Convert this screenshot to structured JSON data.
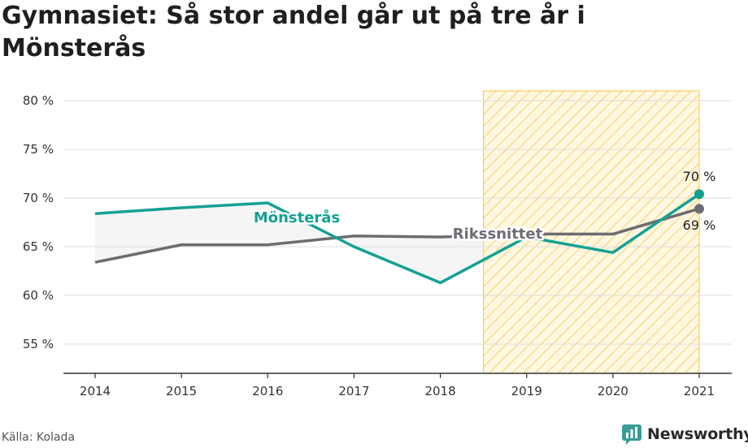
{
  "title": "Gymnasiet: Så stor andel går ut på tre år i Mönsterås",
  "source": "Källa: Kolada",
  "brand": "Newsworthy",
  "colors": {
    "monsteras": "#13a193",
    "riket": "#6e6c72",
    "highlight_fill": "#fbe7a8",
    "highlight_stroke": "#f5c542",
    "brand_icon": "#3a9c94",
    "grid": "#dddddd",
    "axis": "#333333",
    "area": "#e9e9ec"
  },
  "chart_data": {
    "type": "line",
    "x": [
      "2014",
      "2015",
      "2016",
      "2017",
      "2018",
      "2019",
      "2020",
      "2021"
    ],
    "series": [
      {
        "name": "Mönsterås",
        "values": [
          68.4,
          69.0,
          69.5,
          65.0,
          61.3,
          66.0,
          64.4,
          70.4
        ]
      },
      {
        "name": "Rikssnittet",
        "values": [
          63.4,
          65.2,
          65.2,
          66.1,
          66.0,
          66.3,
          66.3,
          68.9
        ]
      }
    ],
    "yticks": [
      "55 %",
      "60 %",
      "65 %",
      "70 %",
      "75 %",
      "80 %"
    ],
    "ytick_values": [
      55,
      60,
      65,
      70,
      75,
      80
    ],
    "ylim": [
      52,
      81
    ],
    "highlight_range": [
      "2019",
      "2021"
    ],
    "end_labels": {
      "Mönsterås": "70 %",
      "Rikssnittet": "69 %"
    },
    "grid": true
  }
}
